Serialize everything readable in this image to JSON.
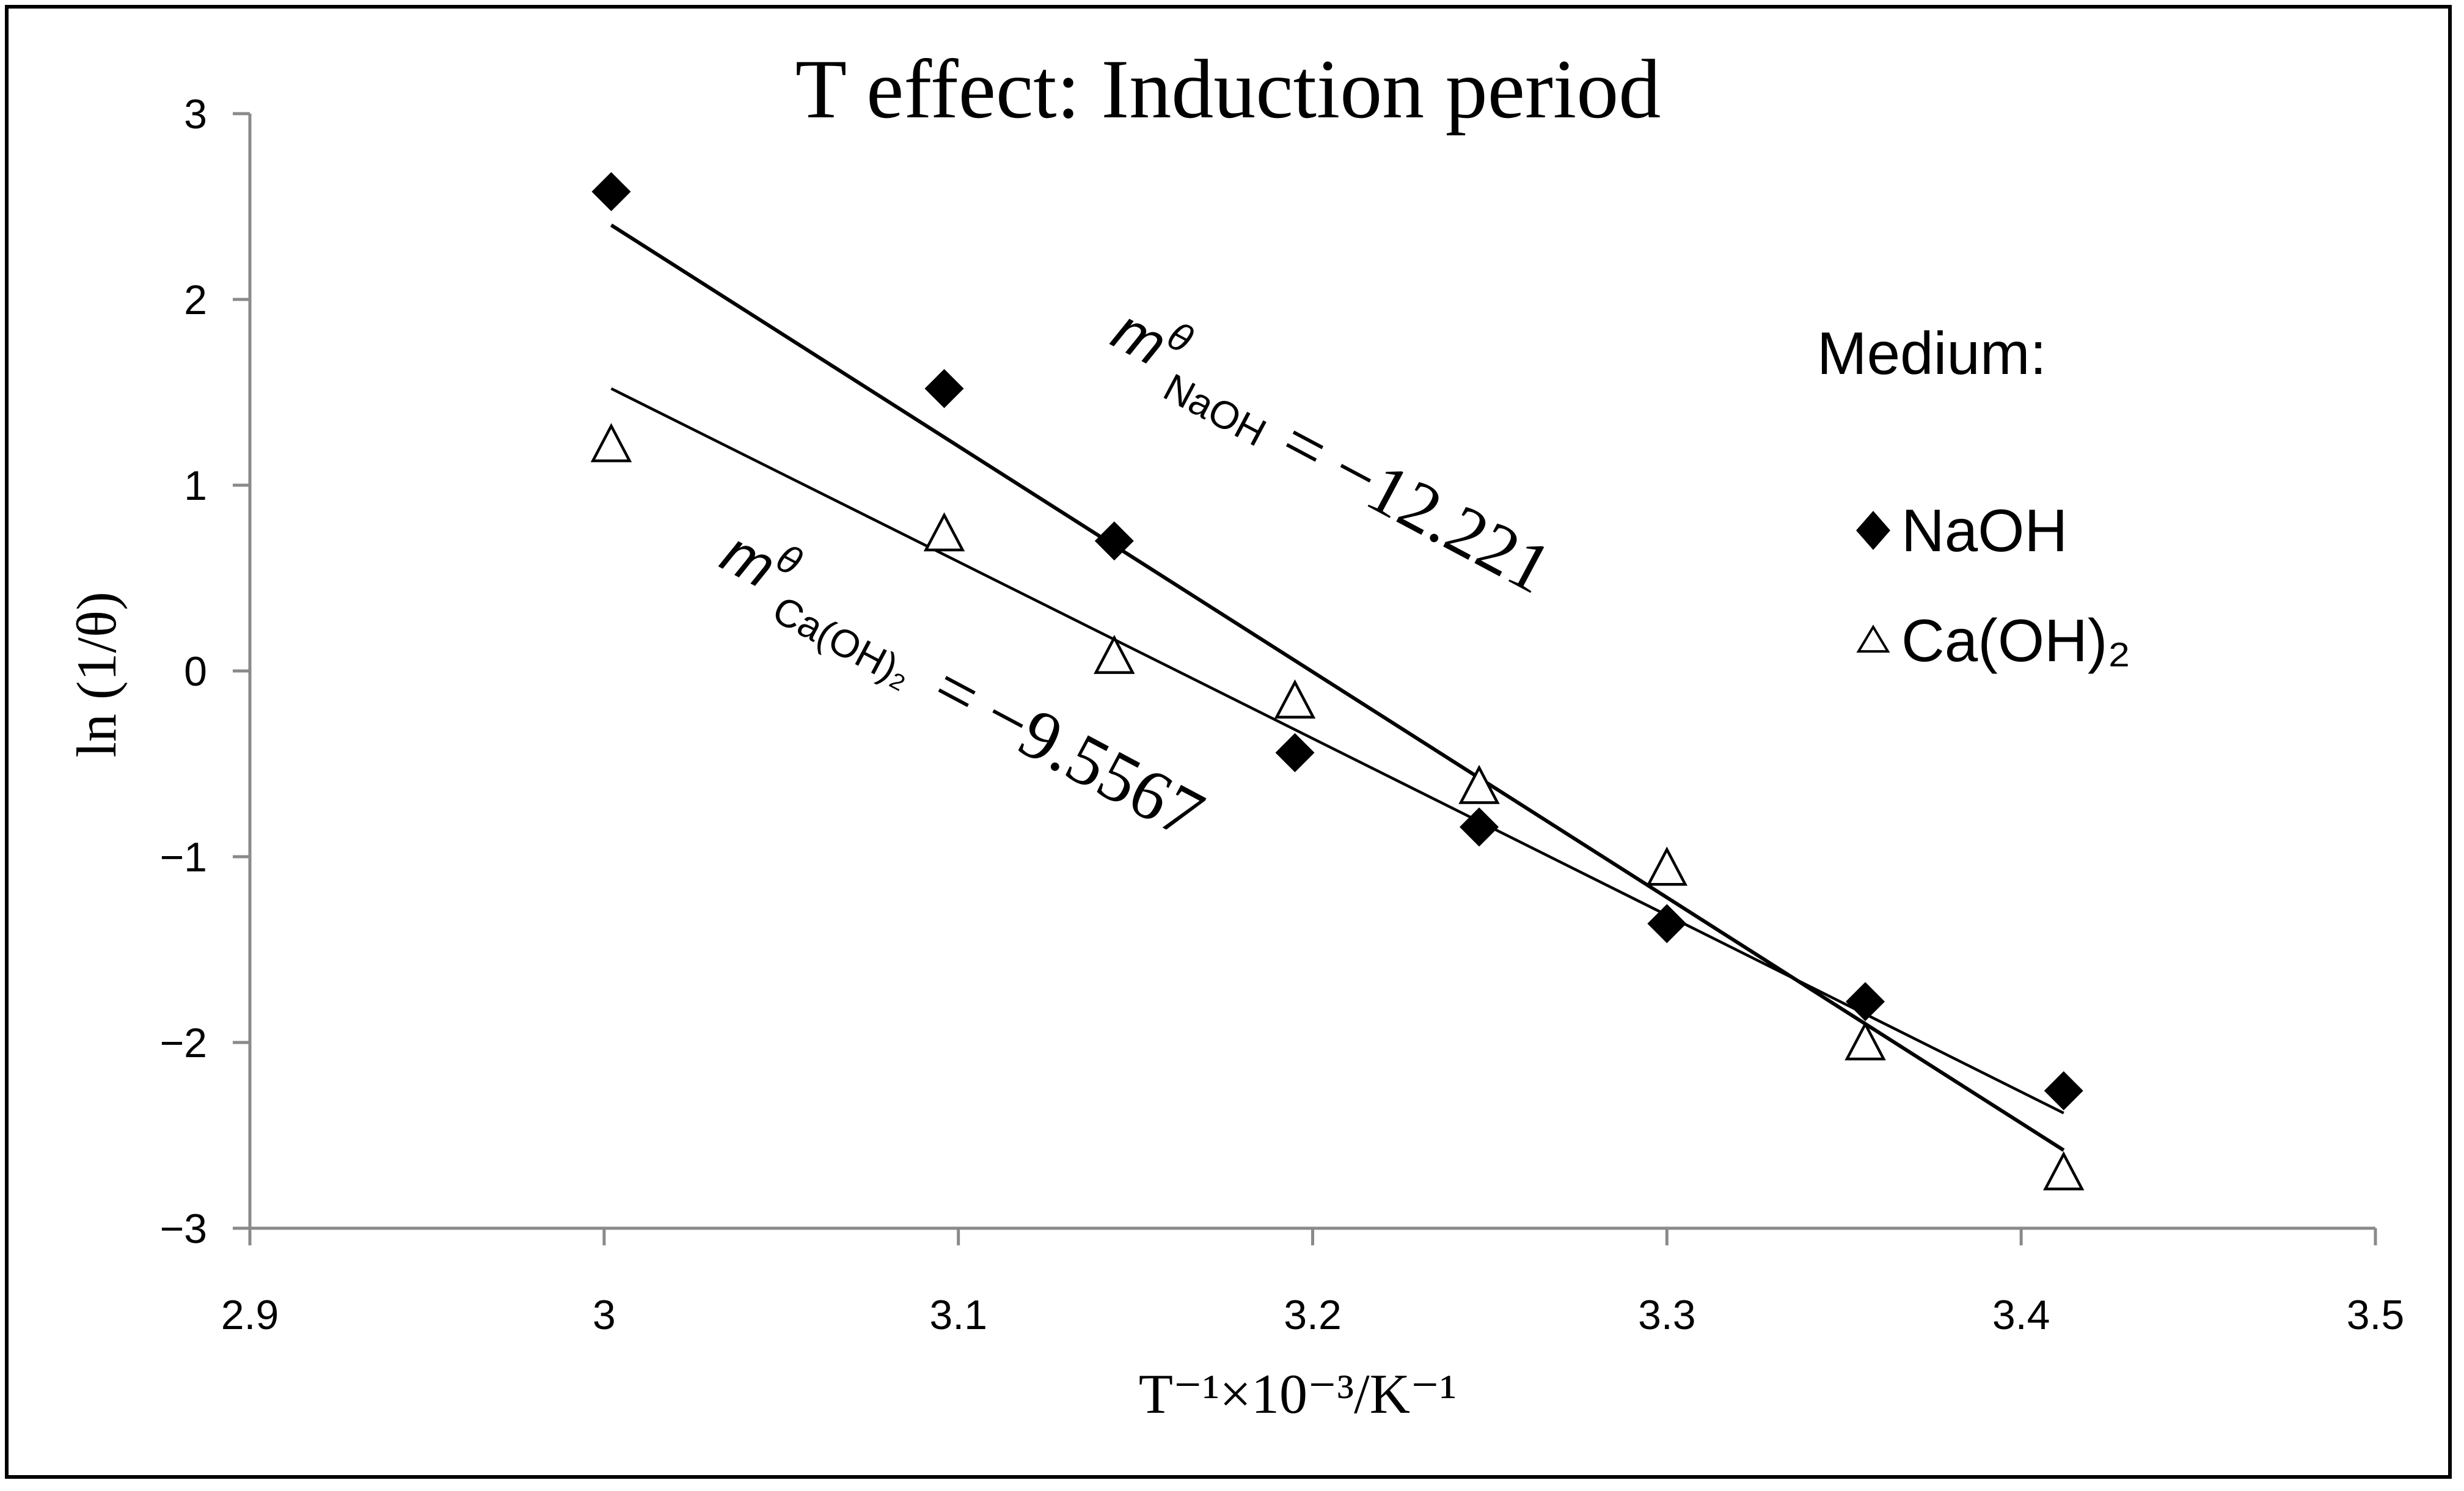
{
  "chart_data": {
    "type": "scatter",
    "title": "T effect: Induction period",
    "xlabel": "T⁻¹×10⁻³/K⁻¹",
    "ylabel": "ln (1/θ)",
    "xlim": [
      2.9,
      3.5
    ],
    "ylim": [
      -3,
      3
    ],
    "xticks": [
      "2.9",
      "3",
      "3.1",
      "3.2",
      "3.3",
      "3.4",
      "3.5"
    ],
    "yticks": [
      "3",
      "2",
      "1",
      "0",
      "−1",
      "−2",
      "−3"
    ],
    "grid": false,
    "legend_title": "Medium:",
    "legend_position": "right",
    "series": [
      {
        "name": "NaOH",
        "marker": "filled-diamond",
        "color": "#000000",
        "x": [
          3.002,
          3.096,
          3.144,
          3.195,
          3.247,
          3.3,
          3.356,
          3.412
        ],
        "y": [
          2.58,
          1.52,
          0.7,
          -0.44,
          -0.84,
          -1.36,
          -1.78,
          -2.26
        ],
        "trendline": {
          "x": [
            3.002,
            3.412
          ],
          "y": [
            2.4,
            -2.58
          ]
        },
        "slope_label": {
          "symbol": "m",
          "superscript": "θ",
          "subscript": "NaOH",
          "value": "= −12.221"
        }
      },
      {
        "name": "Ca(OH)₂",
        "marker": "open-triangle",
        "color": "#000000",
        "x": [
          3.002,
          3.096,
          3.144,
          3.195,
          3.247,
          3.3,
          3.356,
          3.412
        ],
        "y": [
          1.22,
          0.74,
          0.08,
          -0.16,
          -0.62,
          -1.06,
          -2.0,
          -2.7
        ],
        "trendline": {
          "x": [
            3.002,
            3.412
          ],
          "y": [
            1.52,
            -2.38
          ]
        },
        "slope_label": {
          "symbol": "m",
          "superscript": "θ",
          "subscript": "Ca(OH)₂",
          "value": "= −9.5567"
        }
      }
    ]
  }
}
